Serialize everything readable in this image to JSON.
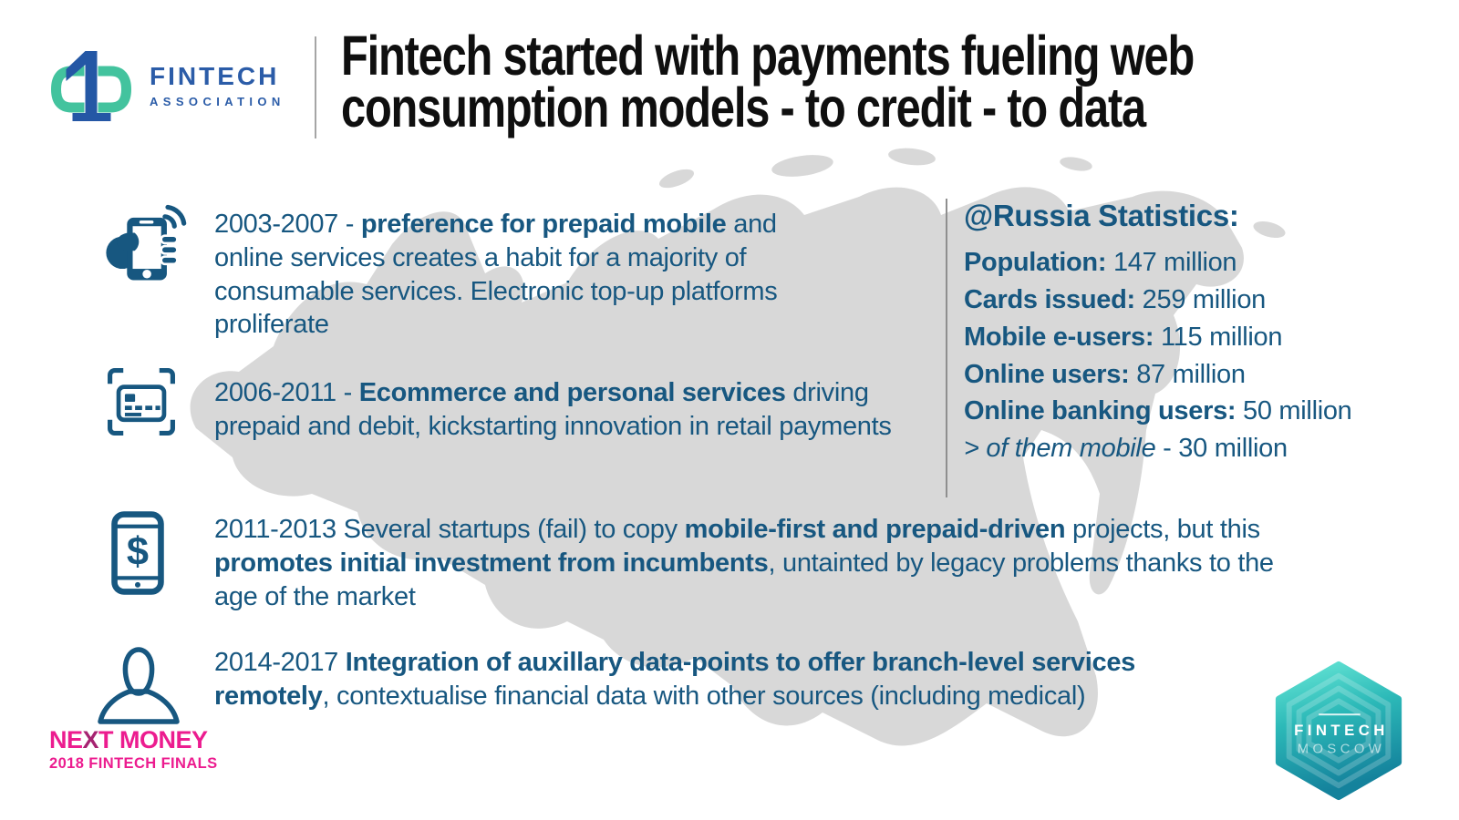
{
  "header": {
    "logo": {
      "line1": "FINTECH",
      "line2": "ASSOCIATION"
    },
    "title_line1": "Fintech started with payments fueling web",
    "title_line2": "consumption models - to credit - to data"
  },
  "timeline": [
    {
      "icon": "mobile-hand-signal-icon",
      "segments": [
        {
          "t": "2003-2007 - "
        },
        {
          "t": "preference for prepaid mobile",
          "b": true
        },
        {
          "t": " and online services creates a habit for a majority of consumable services. Electronic top-up platforms proliferate"
        }
      ]
    },
    {
      "icon": "card-scan-icon",
      "segments": [
        {
          "t": "2006-2011 - "
        },
        {
          "t": "Ecommerce and personal services",
          "b": true
        },
        {
          "t": " driving prepaid and debit, kickstarting innovation in retail payments"
        }
      ]
    },
    {
      "icon": "phone-dollar-icon",
      "segments": [
        {
          "t": "2011-2013 Several startups (fail) to copy "
        },
        {
          "t": "mobile-first and prepaid-driven",
          "b": true
        },
        {
          "t": " projects, but this "
        },
        {
          "t": "promotes initial investment from incumbents",
          "b": true
        },
        {
          "t": ", untainted by legacy problems thanks to the age of the market"
        }
      ]
    },
    {
      "icon": "person-icon",
      "segments": [
        {
          "t": "2014-2017 "
        },
        {
          "t": "Integration of auxillary data-points to offer branch-level services remotely",
          "b": true
        },
        {
          "t": ", contextualise financial data with other sources (including medical)"
        }
      ]
    }
  ],
  "stats": {
    "heading": "@Russia Statistics:",
    "items": [
      {
        "segments": [
          {
            "t": "Population: ",
            "b": true
          },
          {
            "t": "147 million"
          }
        ]
      },
      {
        "segments": [
          {
            "t": "Cards issued: ",
            "b": true
          },
          {
            "t": "259 million"
          }
        ]
      },
      {
        "segments": [
          {
            "t": "Mobile e-users: ",
            "b": true
          },
          {
            "t": "115 million"
          }
        ]
      },
      {
        "segments": [
          {
            "t": "Online users: ",
            "b": true
          },
          {
            "t": "87 million"
          }
        ]
      },
      {
        "segments": [
          {
            "t": "Online banking users: ",
            "b": true
          },
          {
            "t": "50 million"
          }
        ]
      },
      {
        "segments": [
          {
            "t": "> of them mobile",
            "i": true
          },
          {
            "t": " - 30 million"
          }
        ]
      }
    ]
  },
  "footer": {
    "next_money": {
      "segments": [
        {
          "t": "NE"
        },
        {
          "t": "X",
          "cls": "x-dark"
        },
        {
          "t": "T MONEY"
        }
      ],
      "subtitle": "2018 FINTECH FINALS"
    },
    "badge": {
      "line1": "FINTECH",
      "line2": "MOSCOW"
    }
  },
  "colors": {
    "text_blue": "#175780",
    "title_black": "#0f0f0f",
    "logo_blue": "#2b5ca8",
    "logo_teal": "#43c39e",
    "pink": "#ec1c8f",
    "pink_dark": "#a62371",
    "map_grey": "#d8d8d8",
    "divider_grey": "#8f8f8f",
    "badge_teal_top": "#68e7d6",
    "badge_teal_bottom": "#14829c"
  }
}
